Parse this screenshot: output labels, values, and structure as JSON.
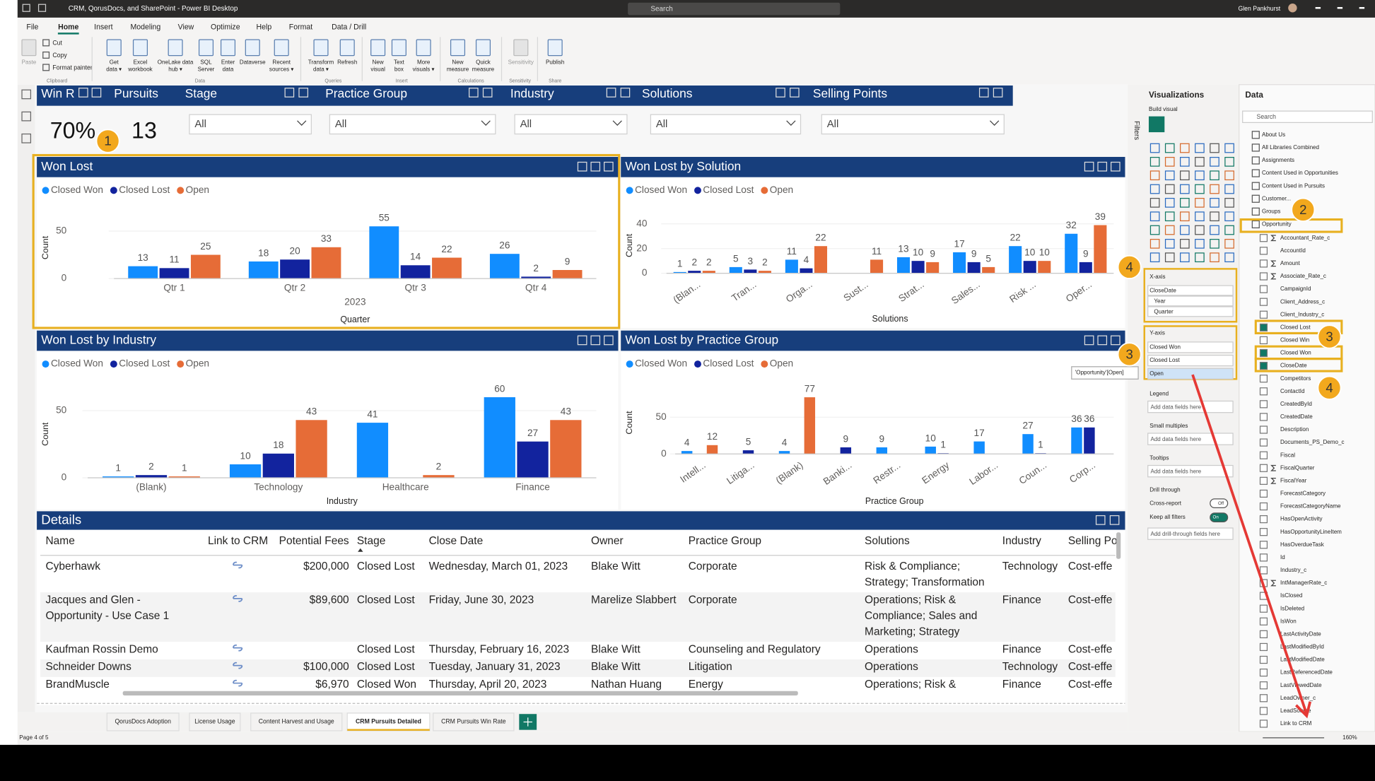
{
  "window": {
    "title": "CRM, QorusDocs, and SharePoint - Power BI Desktop",
    "search": "Search",
    "user": "Glen Pankhurst"
  },
  "ribbon": {
    "tabs": [
      "File",
      "Home",
      "Insert",
      "Modeling",
      "View",
      "Optimize",
      "Help",
      "Format",
      "Data / Drill"
    ],
    "small_buttons": [
      "Cut",
      "Copy",
      "Format painter"
    ],
    "buttons": [
      [
        "Paste"
      ],
      [
        "Get",
        "data ▾"
      ],
      [
        "Excel",
        "workbook"
      ],
      [
        "OneLake data",
        "hub ▾"
      ],
      [
        "SQL",
        "Server"
      ],
      [
        "Enter",
        "data"
      ],
      [
        "Dataverse"
      ],
      [
        "Recent",
        "sources ▾"
      ],
      [
        "Transform",
        "data ▾"
      ],
      [
        "Refresh"
      ],
      [
        "New",
        "visual"
      ],
      [
        "Text",
        "box"
      ],
      [
        "More",
        "visuals ▾"
      ],
      [
        "New",
        "measure"
      ],
      [
        "Quick",
        "measure"
      ],
      [
        "Sensitivity"
      ],
      [
        "Publish"
      ]
    ],
    "groups": [
      "Clipboard",
      "Data",
      "Queries",
      "Insert",
      "Calculations",
      "Sensitivity",
      "Share"
    ]
  },
  "report": {
    "cards": [
      {
        "title": "Win R",
        "value": "70%"
      },
      {
        "title": "Pursuits",
        "value": "13"
      }
    ],
    "slicers": [
      {
        "title": "Stage",
        "value": "All"
      },
      {
        "title": "Practice Group",
        "value": "All"
      },
      {
        "title": "Industry",
        "value": "All"
      },
      {
        "title": "Solutions",
        "value": "All"
      },
      {
        "title": "Selling Points",
        "value": "All"
      }
    ],
    "charts": [
      {
        "type": "bar",
        "title": "Won Lost",
        "categories": [
          "Qtr 1",
          "Qtr 2",
          "Qtr 3",
          "Qtr 4"
        ],
        "x_group_label": "2023",
        "x_label": "Quarter",
        "y_label": "Count",
        "ylim": [
          0,
          65
        ],
        "yticks": [
          0,
          50
        ],
        "series": [
          {
            "name": "Closed Won",
            "color": "#118dff",
            "values": [
              13,
              18,
              55,
              26
            ]
          },
          {
            "name": "Closed Lost",
            "color": "#12239e",
            "values": [
              11,
              20,
              14,
              2
            ]
          },
          {
            "name": "Open",
            "color": "#e66c37",
            "values": [
              25,
              33,
              22,
              9
            ]
          }
        ]
      },
      {
        "type": "bar",
        "title": "Won Lost by Solution",
        "categories": [
          "(Blan...",
          "Tran...",
          "Orga...",
          "Sust...",
          "Strat...",
          "Sales...",
          "Risk ...",
          "Oper..."
        ],
        "x_label": "Solutions",
        "y_label": "Count",
        "ylim": [
          0,
          45
        ],
        "yticks": [
          0,
          20,
          40
        ],
        "series": [
          {
            "name": "Closed Won",
            "color": "#118dff",
            "values": [
              1,
              5,
              11,
              null,
              13,
              17,
              22,
              32
            ]
          },
          {
            "name": "Closed Lost",
            "color": "#12239e",
            "values": [
              2,
              3,
              4,
              null,
              10,
              9,
              10,
              9
            ]
          },
          {
            "name": "Open",
            "color": "#e66c37",
            "values": [
              2,
              2,
              22,
              11,
              9,
              5,
              10,
              39
            ]
          }
        ]
      },
      {
        "type": "bar",
        "title": "Won Lost by Industry",
        "categories": [
          "(Blank)",
          "Technology",
          "Healthcare",
          "Finance"
        ],
        "x_label": "Industry",
        "y_label": "Count",
        "ylim": [
          0,
          65
        ],
        "yticks": [
          0,
          50
        ],
        "series": [
          {
            "name": "Closed Won",
            "color": "#118dff",
            "values": [
              1,
              10,
              41,
              60
            ]
          },
          {
            "name": "Closed Lost",
            "color": "#12239e",
            "values": [
              2,
              18,
              null,
              27
            ]
          },
          {
            "name": "Open",
            "color": "#e66c37",
            "values": [
              1,
              43,
              2,
              43
            ]
          }
        ]
      },
      {
        "type": "bar",
        "title": "Won Lost by Practice Group",
        "categories": [
          "Intell...",
          "Litiga...",
          "(Blank)",
          "Banki...",
          "Restr...",
          "Energy",
          "Labor...",
          "Coun...",
          "Corp..."
        ],
        "x_label": "Practice Group",
        "y_label": "Count",
        "ylim": [
          0,
          85
        ],
        "yticks": [
          0,
          50
        ],
        "series": [
          {
            "name": "Closed Won",
            "color": "#118dff",
            "values": [
              4,
              null,
              4,
              null,
              9,
              10,
              17,
              27,
              36
            ]
          },
          {
            "name": "Closed Lost",
            "color": "#12239e",
            "values": [
              null,
              5,
              null,
              9,
              null,
              1,
              null,
              1,
              36
            ]
          },
          {
            "name": "Open",
            "color": "#e66c37",
            "values": [
              12,
              null,
              77,
              null,
              null,
              null,
              null,
              null,
              null
            ]
          }
        ]
      }
    ],
    "details": {
      "title": "Details",
      "columns": [
        "Name",
        "Link to CRM",
        "Potential Fees",
        "Stage",
        "Close Date",
        "Owner",
        "Practice Group",
        "Solutions",
        "Industry",
        "Selling Po"
      ],
      "rows": [
        [
          [
            "Cyberhawk"
          ],
          null,
          [
            "$200,000"
          ],
          [
            "Closed Lost"
          ],
          [
            "Wednesday, March 01, 2023"
          ],
          [
            "Blake Witt"
          ],
          [
            "Corporate"
          ],
          [
            "Risk & Compliance;",
            "Strategy; Transformation"
          ],
          [
            "Technology"
          ],
          [
            "Cost-effe"
          ]
        ],
        [
          [
            "Jacques and Glen -",
            "Opportunity - Use Case 1"
          ],
          null,
          [
            "$89,600"
          ],
          [
            "Closed Lost"
          ],
          [
            "Friday, June 30, 2023"
          ],
          [
            "Marelize Slabbert"
          ],
          [
            "Corporate"
          ],
          [
            "Operations; Risk &",
            "Compliance; Sales and",
            "Marketing; Strategy"
          ],
          [
            "Finance"
          ],
          [
            "Cost-effe"
          ]
        ],
        [
          [
            "Kaufman Rossin Demo"
          ],
          null,
          null,
          [
            "Closed Lost"
          ],
          [
            "Thursday, February 16, 2023"
          ],
          [
            "Blake Witt"
          ],
          [
            "Counseling and Regulatory"
          ],
          [
            "Operations"
          ],
          [
            "Finance"
          ],
          [
            "Cost-effe"
          ]
        ],
        [
          [
            "Schneider Downs"
          ],
          null,
          [
            "$100,000"
          ],
          [
            "Closed Lost"
          ],
          [
            "Tuesday, January 31, 2023"
          ],
          [
            "Blake Witt"
          ],
          [
            "Litigation"
          ],
          [
            "Operations"
          ],
          [
            "Technology"
          ],
          [
            "Cost-effe"
          ]
        ],
        [
          [
            "BrandMuscle"
          ],
          null,
          [
            "$6,970"
          ],
          [
            "Closed Won"
          ],
          [
            "Thursday, April 20, 2023"
          ],
          [
            "Nathan Huang"
          ],
          [
            "Energy"
          ],
          [
            "Operations; Risk &"
          ],
          [
            "Finance"
          ],
          [
            "Cost-effe"
          ]
        ]
      ]
    }
  },
  "filters_label": "Filters",
  "visualizations": {
    "title": "Visualizations",
    "subtitle": "Build visual",
    "x_axis": {
      "label": "X-axis",
      "fields": [
        "CloseDate",
        "Year",
        "Quarter"
      ]
    },
    "y_axis": {
      "label": "Y-axis",
      "fields": [
        "Closed Won",
        "Closed Lost",
        "Open"
      ]
    },
    "tooltip": "'Opportunity'[Open]",
    "wells": [
      {
        "label": "Legend",
        "placeholder": "Add data fields here"
      },
      {
        "label": "Small multiples",
        "placeholder": "Add data fields here"
      },
      {
        "label": "Tooltips",
        "placeholder": "Add data fields here"
      }
    ],
    "drill": {
      "title": "Drill through",
      "options": [
        {
          "label": "Cross-report",
          "state": "Off"
        },
        {
          "label": "Keep all filters",
          "state": "On"
        }
      ],
      "placeholder": "Add drill-through fields here"
    }
  },
  "data_pane": {
    "title": "Data",
    "search": "Search",
    "tables": [
      "About Us",
      "All Libraries Combined",
      "Assignments",
      "Content Used in Opportunities",
      "Content Used in Pursuits",
      "Customer...",
      "Groups",
      "Opportunity"
    ],
    "fields": [
      {
        "name": "Accountant_Rate_c",
        "sum": true
      },
      {
        "name": "AccountId"
      },
      {
        "name": "Amount",
        "sum": true
      },
      {
        "name": "Associate_Rate_c",
        "sum": true
      },
      {
        "name": "CampaignId"
      },
      {
        "name": "Client_Address_c"
      },
      {
        "name": "Client_Industry_c"
      },
      {
        "name": "Closed Lost",
        "checked": true
      },
      {
        "name": "Closed Win"
      },
      {
        "name": "Closed Won",
        "checked": true
      },
      {
        "name": "CloseDate",
        "checked": true
      },
      {
        "name": "Competitors"
      },
      {
        "name": "ContactId"
      },
      {
        "name": "CreatedById"
      },
      {
        "name": "CreatedDate"
      },
      {
        "name": "Description"
      },
      {
        "name": "Documents_PS_Demo_c"
      },
      {
        "name": "Fiscal"
      },
      {
        "name": "FiscalQuarter",
        "sum": true
      },
      {
        "name": "FiscalYear",
        "sum": true
      },
      {
        "name": "ForecastCategory"
      },
      {
        "name": "ForecastCategoryName"
      },
      {
        "name": "HasOpenActivity"
      },
      {
        "name": "HasOpportunityLineItem"
      },
      {
        "name": "HasOverdueTask"
      },
      {
        "name": "Id"
      },
      {
        "name": "Industry_c"
      },
      {
        "name": "IntManagerRate_c",
        "sum": true
      },
      {
        "name": "IsClosed"
      },
      {
        "name": "IsDeleted"
      },
      {
        "name": "IsWon"
      },
      {
        "name": "LastActivityDate"
      },
      {
        "name": "LastModifiedById"
      },
      {
        "name": "LastModifiedDate"
      },
      {
        "name": "LastReferencedDate"
      },
      {
        "name": "LastViewedDate"
      },
      {
        "name": "LeadOwner_c"
      },
      {
        "name": "LeadSource"
      },
      {
        "name": "Link to CRM"
      }
    ]
  },
  "page_tabs": {
    "tabs": [
      "QorusDocs Adoption",
      "License Usage",
      "Content Harvest and Usage",
      "CRM Pursuits Detailed",
      "CRM Pursuits Win Rate"
    ],
    "active": 3
  },
  "status": {
    "page": "Page 4 of 5",
    "zoom": "160%"
  },
  "callouts": [
    "1",
    "2",
    "4",
    "3",
    "3",
    "4"
  ]
}
